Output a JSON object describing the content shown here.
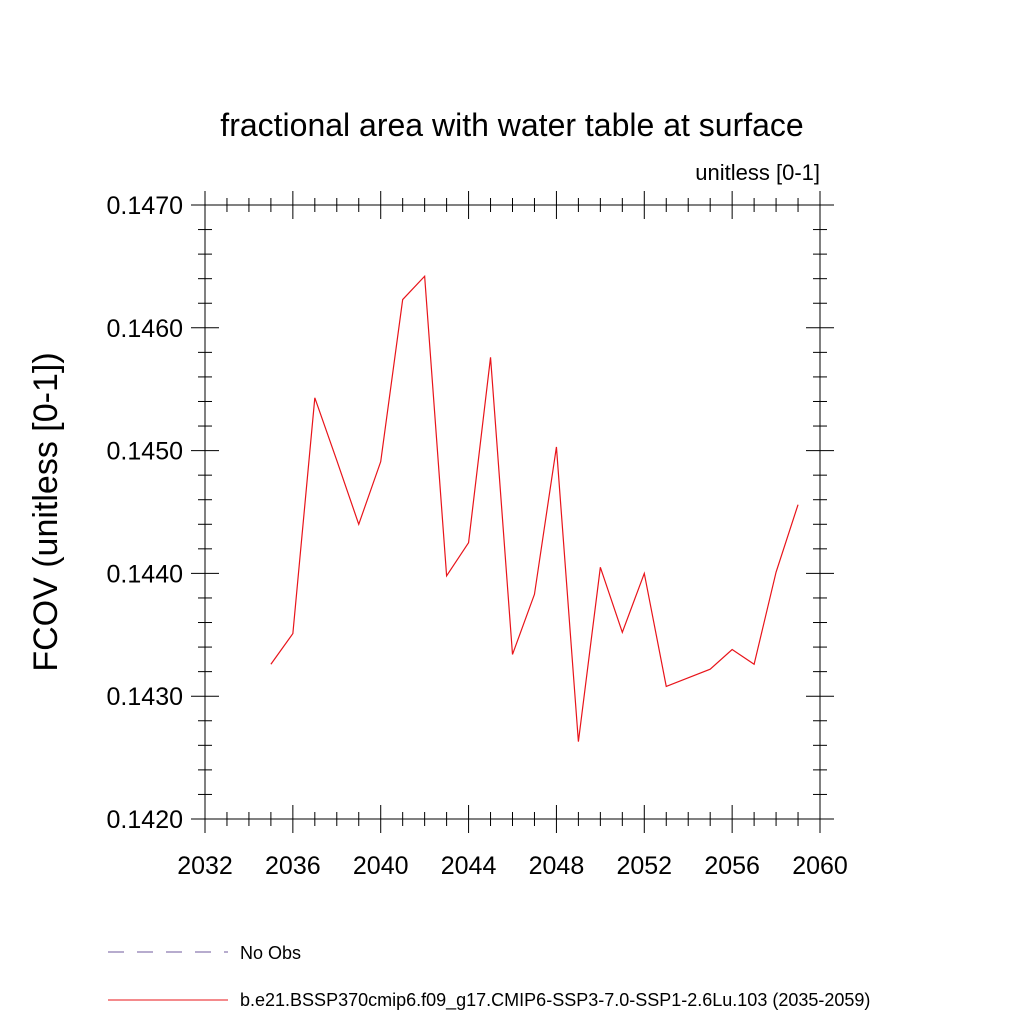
{
  "chart_data": {
    "type": "line",
    "title": "fractional area with water table at surface",
    "units_label": "unitless [0-1]",
    "ylabel": "FCOV  (unitless [0-1])",
    "xlabel": "",
    "xlim": [
      2032,
      2060
    ],
    "ylim": [
      0.142,
      0.147
    ],
    "x_ticks": [
      2032,
      2036,
      2040,
      2044,
      2048,
      2052,
      2056,
      2060
    ],
    "x_tick_labels": [
      "2032",
      "2036",
      "2040",
      "2044",
      "2048",
      "2052",
      "2056",
      "2060"
    ],
    "y_ticks": [
      0.142,
      0.143,
      0.144,
      0.145,
      0.146,
      0.147
    ],
    "y_tick_labels": [
      "0.1420",
      "0.1430",
      "0.1440",
      "0.1450",
      "0.1460",
      "0.1470"
    ],
    "grid": false,
    "legend_position": "bottom",
    "series": [
      {
        "name": "No Obs",
        "color": "#6f5a9e",
        "style": "dashed",
        "x": [],
        "values": []
      },
      {
        "name": "b.e21.BSSP370cmip6.f09_g17.CMIP6-SSP3-7.0-SSP1-2.6Lu.103 (2035-2059)",
        "color": "#e8141a",
        "style": "solid",
        "x": [
          2035,
          2036,
          2037,
          2038,
          2039,
          2040,
          2041,
          2042,
          2043,
          2044,
          2045,
          2046,
          2047,
          2048,
          2049,
          2050,
          2051,
          2052,
          2053,
          2054,
          2055,
          2056,
          2057,
          2058,
          2059
        ],
        "values": [
          0.14326,
          0.14351,
          0.14543,
          0.14492,
          0.1444,
          0.14491,
          0.14623,
          0.14642,
          0.14398,
          0.14425,
          0.14576,
          0.14334,
          0.14383,
          0.14503,
          0.14263,
          0.14405,
          0.14352,
          0.144,
          0.14308,
          0.14315,
          0.14322,
          0.14338,
          0.14326,
          0.14401,
          0.14456
        ]
      }
    ]
  }
}
